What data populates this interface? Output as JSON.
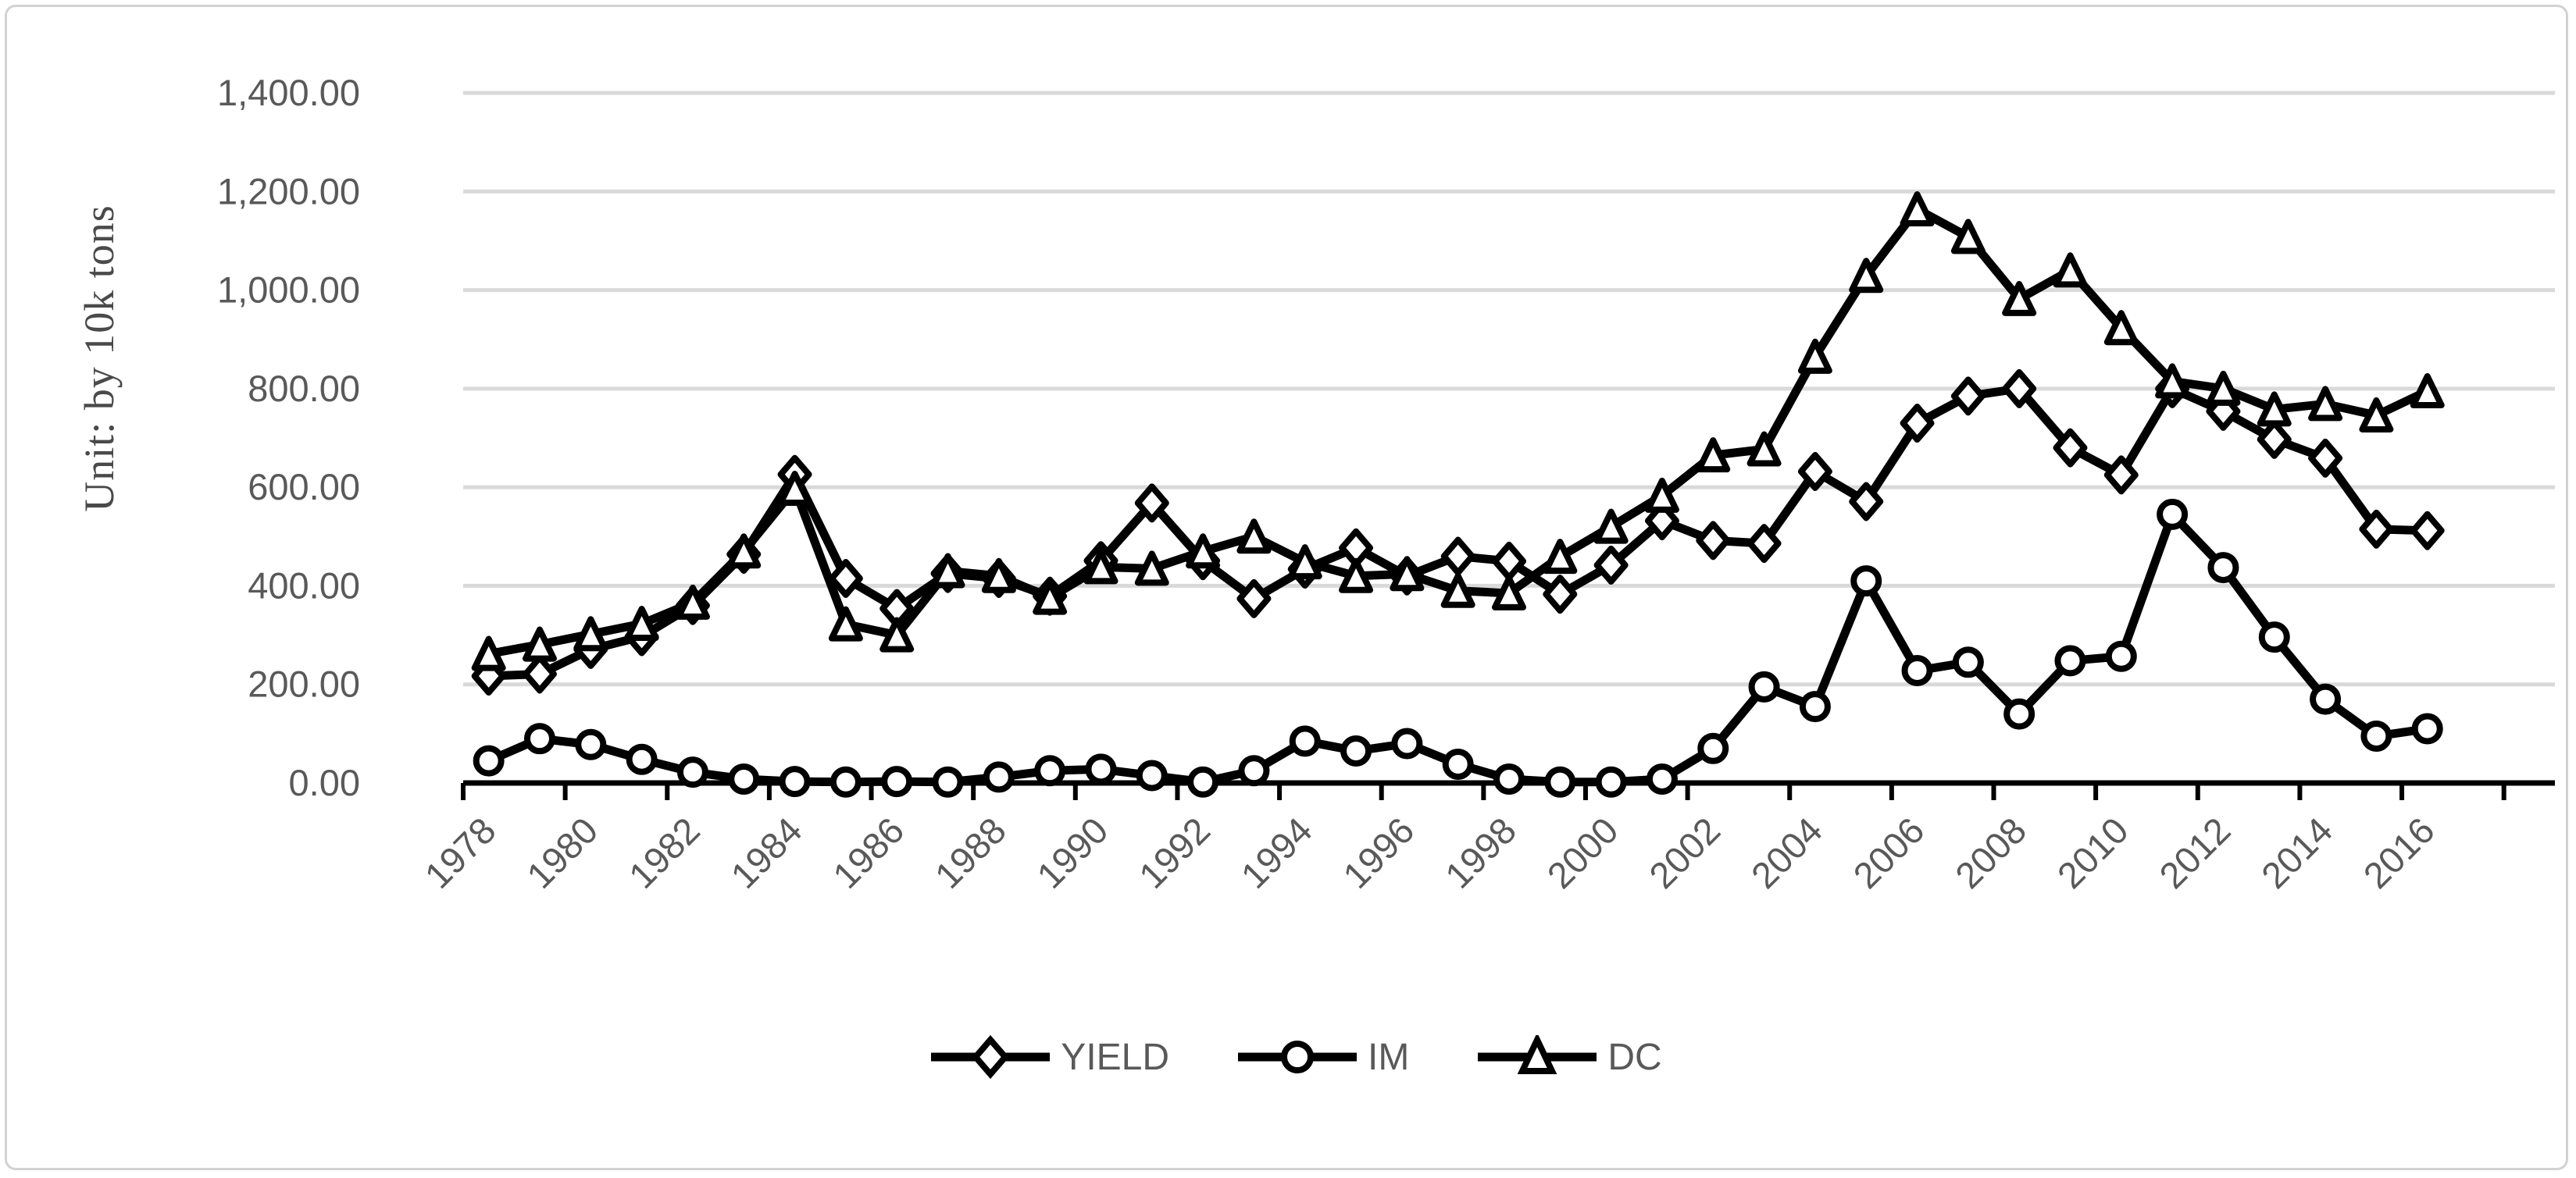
{
  "frame": {
    "border_color": "#d2d2d2",
    "background": "#ffffff"
  },
  "colors": {
    "series_stroke": "#000000",
    "marker_fill": "#ffffff",
    "gridline": "#d9d9d9",
    "axis_line": "#000000",
    "tick_label": "#595959",
    "y_title": "#4a4a4a"
  },
  "chart_data": {
    "type": "line",
    "title": "",
    "xlabel": "",
    "ylabel": "Unit: by 10k tons",
    "ylim": [
      0,
      1400
    ],
    "y_tick_step": 200,
    "y_tick_labels": [
      "0.00",
      "200.00",
      "400.00",
      "600.00",
      "800.00",
      "1,000.00",
      "1,200.00",
      "1,400.00"
    ],
    "grid": "horizontal",
    "legend_position": "bottom",
    "x": [
      1978,
      1979,
      1980,
      1981,
      1982,
      1983,
      1984,
      1985,
      1986,
      1987,
      1988,
      1989,
      1990,
      1991,
      1992,
      1993,
      1994,
      1995,
      1996,
      1997,
      1998,
      1999,
      2000,
      2001,
      2002,
      2003,
      2004,
      2005,
      2006,
      2007,
      2008,
      2009,
      2010,
      2011,
      2012,
      2013,
      2014,
      2015,
      2016
    ],
    "x_tick_labels": [
      "1978",
      "1980",
      "1982",
      "1984",
      "1986",
      "1988",
      "1990",
      "1992",
      "1994",
      "1996",
      "1998",
      "2000",
      "2002",
      "2004",
      "2006",
      "2008",
      "2010",
      "2012",
      "2014",
      "2016"
    ],
    "extra_empty_categories": 2,
    "series": [
      {
        "name": "YIELD",
        "marker": "diamond",
        "values": [
          217,
          221,
          271,
          297,
          360,
          464,
          626,
          415,
          354,
          425,
          415,
          379,
          451,
          568,
          451,
          374,
          434,
          477,
          420,
          460,
          450,
          383,
          442,
          532,
          492,
          486,
          632,
          571,
          730,
          785,
          800,
          680,
          625,
          800,
          754,
          697,
          659,
          515,
          512
        ]
      },
      {
        "name": "IM",
        "marker": "circle",
        "values": [
          45,
          90,
          78,
          48,
          22,
          8,
          3,
          2,
          3,
          2,
          12,
          25,
          28,
          15,
          2,
          25,
          85,
          65,
          80,
          38,
          8,
          2,
          2,
          8,
          70,
          195,
          155,
          410,
          228,
          245,
          140,
          248,
          257,
          545,
          437,
          296,
          170,
          95,
          110
        ]
      },
      {
        "name": "DC",
        "marker": "triangle",
        "values": [
          262,
          281,
          302,
          323,
          366,
          470,
          597,
          322,
          300,
          430,
          420,
          376,
          438,
          435,
          470,
          500,
          448,
          420,
          424,
          390,
          385,
          459,
          520,
          583,
          665,
          677,
          865,
          1029,
          1164,
          1108,
          982,
          1040,
          923,
          815,
          800,
          758,
          769,
          746,
          795
        ]
      }
    ]
  }
}
